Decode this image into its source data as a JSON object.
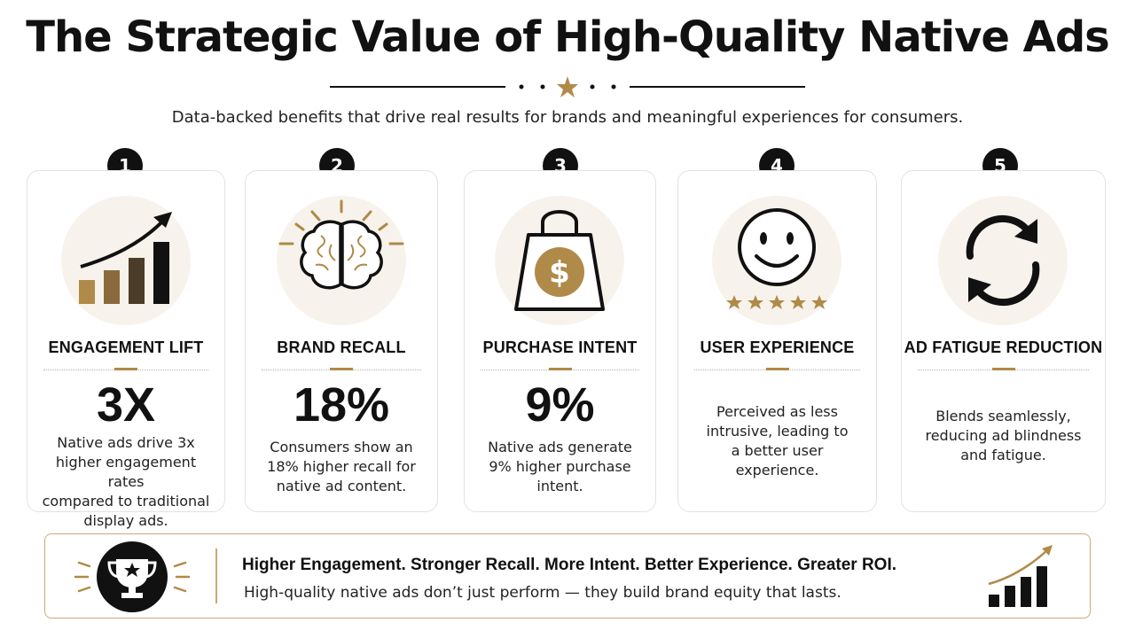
{
  "header": {
    "title": "The Strategic Value of High-Quality Native Ads",
    "subtitle": "Data-backed benefits that drive real results for brands and meaningful experiences for consumers."
  },
  "cards": [
    {
      "number": "1",
      "title": "ENGAGEMENT LIFT",
      "stat": "3X",
      "icon": "rising-bar-chart-icon",
      "lines": [
        "Native ads drive 3x",
        "higher engagement rates",
        "compared to traditional",
        "display ads."
      ]
    },
    {
      "number": "2",
      "title": "BRAND RECALL",
      "stat": "18%",
      "icon": "brain-icon",
      "lines": [
        "Consumers show an",
        "18% higher recall for",
        "native ad content."
      ]
    },
    {
      "number": "3",
      "title": "PURCHASE INTENT",
      "stat": "9%",
      "icon": "shopping-bag-dollar-icon",
      "lines": [
        "Native ads generate",
        "9% higher purchase",
        "intent."
      ]
    },
    {
      "number": "4",
      "title": "USER EXPERIENCE",
      "stat": "",
      "icon": "smiley-five-stars-icon",
      "lines": [
        "Perceived as less",
        "intrusive, leading to",
        "a better user",
        "experience."
      ]
    },
    {
      "number": "5",
      "title": "AD FATIGUE REDUCTION",
      "stat": "",
      "icon": "refresh-cycle-icon",
      "lines": [
        "Blends seamlessly,",
        "reducing ad blindness",
        "and fatigue."
      ]
    }
  ],
  "banner": {
    "title": "Higher Engagement. Stronger Recall. More Intent. Better Experience. Greater ROI.",
    "subtitle": "High-quality native ads don’t just perform — they build brand equity that lasts.",
    "left_icon": "trophy-star-icon",
    "right_icon": "growth-bar-chart-icon"
  },
  "colors": {
    "accent_gold": "#b08a48",
    "dark": "#111111",
    "icon_bg": "#f7f3ec"
  }
}
